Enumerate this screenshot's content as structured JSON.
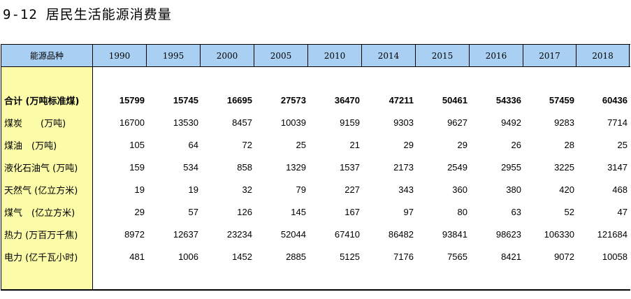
{
  "title": {
    "code": "9-12",
    "text": "居民生活能源消费量"
  },
  "header": {
    "label": "能源品种",
    "years": [
      "1990",
      "1995",
      "2000",
      "2005",
      "2010",
      "2014",
      "2015",
      "2016",
      "2017",
      "2018"
    ]
  },
  "rows": [
    {
      "label": "合计 (万吨标准煤)",
      "bold": true,
      "values": [
        "15799",
        "15745",
        "16695",
        "27573",
        "36470",
        "47211",
        "50461",
        "54336",
        "57459",
        "60436"
      ]
    },
    {
      "label": "煤炭　　(万吨)",
      "values": [
        "16700",
        "13530",
        "8457",
        "10039",
        "9159",
        "9303",
        "9627",
        "9492",
        "9283",
        "7714"
      ]
    },
    {
      "label": "煤油　(万吨)",
      "values": [
        "105",
        "64",
        "72",
        "25",
        "21",
        "29",
        "29",
        "26",
        "28",
        "25"
      ]
    },
    {
      "label": "液化石油气 (万吨)",
      "values": [
        "159",
        "534",
        "858",
        "1329",
        "1537",
        "2173",
        "2549",
        "2955",
        "3225",
        "3147"
      ]
    },
    {
      "label": "天然气 (亿立方米)",
      "values": [
        "19",
        "19",
        "32",
        "79",
        "227",
        "343",
        "360",
        "380",
        "420",
        "468"
      ]
    },
    {
      "label": "煤气　(亿立方米)",
      "values": [
        "29",
        "57",
        "126",
        "145",
        "167",
        "97",
        "80",
        "63",
        "52",
        "47"
      ]
    },
    {
      "label": "热力 (万百万千焦)",
      "values": [
        "8972",
        "12637",
        "23234",
        "52044",
        "67410",
        "86482",
        "93841",
        "98623",
        "106330",
        "121684"
      ]
    },
    {
      "label": "电力 (亿千瓦小时)",
      "values": [
        "481",
        "1006",
        "1452",
        "2885",
        "5125",
        "7176",
        "7565",
        "8421",
        "9072",
        "10058"
      ]
    }
  ]
}
